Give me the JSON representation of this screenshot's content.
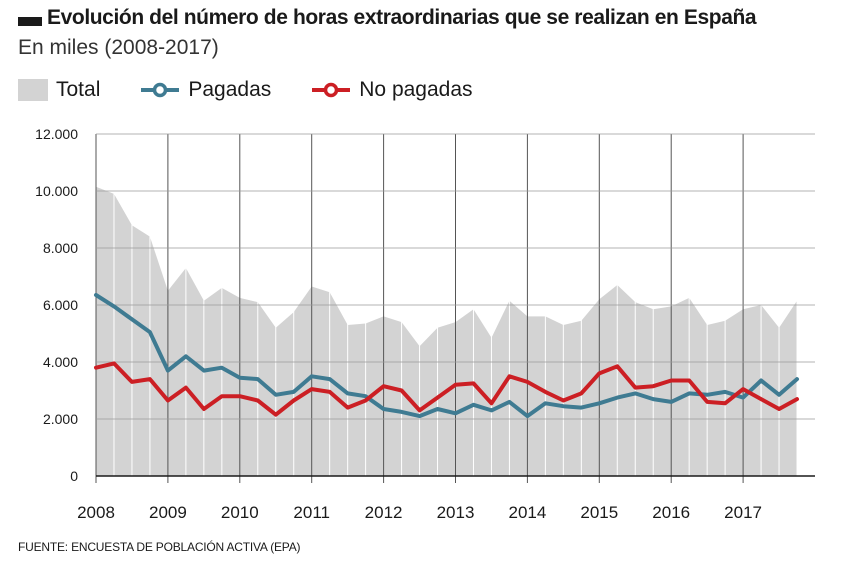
{
  "header": {
    "title": "Evolución del número de horas extraordinarias que se realizan en España",
    "subtitle": "En miles (2008-2017)"
  },
  "legend": {
    "total": "Total",
    "paid": "Pagadas",
    "unpaid": "No pagadas"
  },
  "footer": {
    "source": "FUENTE: ENCUESTA DE POBLACIÓN ACTIVA (EPA)"
  },
  "colors": {
    "total_area": "#d3d3d3",
    "paid_line": "#3f7b92",
    "unpaid_line": "#cc1f24",
    "grid": "#ffffff",
    "year_line": "#555555"
  },
  "chart_data": {
    "type": "area",
    "title": "Evolución del número de horas extraordinarias que se realizan en España",
    "subtitle": "En miles (2008-2017)",
    "xlabel": "",
    "ylabel": "",
    "ylim": [
      0,
      12000
    ],
    "yticks": [
      0,
      2000,
      4000,
      6000,
      8000,
      10000,
      12000
    ],
    "ytick_labels": [
      "0",
      "2.000",
      "4.000",
      "6.000",
      "8.000",
      "10.000",
      "12.000"
    ],
    "xticks": [
      "2008",
      "2009",
      "2010",
      "2011",
      "2012",
      "2013",
      "2014",
      "2015",
      "2016",
      "2017"
    ],
    "periods_per_year": 4,
    "legend_position": "top-left",
    "grid": true,
    "series": [
      {
        "name": "Total",
        "kind": "area",
        "values": [
          10150,
          9900,
          8800,
          8400,
          6500,
          7300,
          6150,
          6600,
          6250,
          6100,
          5200,
          5750,
          6650,
          6450,
          5300,
          5350,
          5600,
          5400,
          4550,
          5200,
          5400,
          5850,
          4850,
          6150,
          5600,
          5600,
          5300,
          5450,
          6200,
          6700,
          6100,
          5850,
          5950,
          6250,
          5300,
          5450,
          5850,
          6000,
          5200,
          6150
        ]
      },
      {
        "name": "Pagadas",
        "kind": "line",
        "values": [
          6350,
          5950,
          5500,
          5050,
          3700,
          4200,
          3700,
          3800,
          3450,
          3400,
          2850,
          2950,
          3500,
          3400,
          2900,
          2800,
          2350,
          2250,
          2100,
          2350,
          2200,
          2500,
          2300,
          2600,
          2100,
          2550,
          2450,
          2400,
          2550,
          2750,
          2900,
          2700,
          2600,
          2900,
          2850,
          2950,
          2750,
          3350,
          2850,
          3400
        ]
      },
      {
        "name": "No pagadas",
        "kind": "line",
        "values": [
          3800,
          3950,
          3300,
          3400,
          2650,
          3100,
          2350,
          2800,
          2800,
          2650,
          2150,
          2650,
          3050,
          2950,
          2400,
          2650,
          3150,
          3000,
          2300,
          2750,
          3200,
          3250,
          2550,
          3500,
          3300,
          2950,
          2650,
          2900,
          3600,
          3850,
          3100,
          3150,
          3350,
          3350,
          2600,
          2550,
          3050,
          2700,
          2350,
          2700
        ]
      }
    ]
  }
}
